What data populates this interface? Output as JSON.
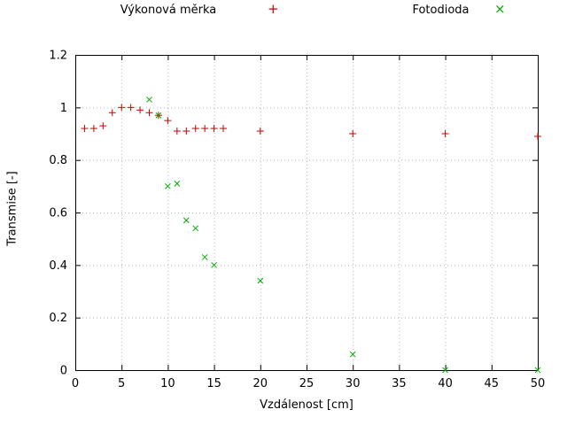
{
  "chart_data": {
    "type": "scatter",
    "title": "",
    "xlabel": "Vzdálenost [cm]",
    "ylabel": "Transmise [-]",
    "xlim": [
      0,
      50
    ],
    "ylim": [
      0,
      1.2
    ],
    "xticks": [
      0,
      5,
      10,
      15,
      20,
      25,
      30,
      35,
      40,
      45,
      50
    ],
    "yticks": [
      0,
      0.2,
      0.4,
      0.6,
      0.8,
      1,
      1.2
    ],
    "grid": true,
    "legend_position": "top",
    "series": [
      {
        "name": "Výkonová měrka",
        "marker": "plus",
        "marker_glyph": "+",
        "color": "#cc0000",
        "x": [
          1,
          2,
          3,
          4,
          5,
          6,
          7,
          8,
          9,
          10,
          11,
          12,
          13,
          14,
          15,
          16,
          20,
          30,
          40,
          50
        ],
        "y": [
          0.92,
          0.92,
          0.93,
          0.98,
          1.0,
          1.0,
          0.99,
          0.98,
          0.97,
          0.95,
          0.91,
          0.91,
          0.92,
          0.92,
          0.92,
          0.92,
          0.91,
          0.9,
          0.9,
          0.89
        ]
      },
      {
        "name": "Fotodioda",
        "marker": "cross",
        "marker_glyph": "×",
        "color": "#00aa00",
        "x": [
          8,
          9,
          10,
          11,
          12,
          13,
          14,
          15,
          20,
          30,
          40,
          50
        ],
        "y": [
          1.03,
          0.97,
          0.7,
          0.71,
          0.57,
          0.54,
          0.43,
          0.4,
          0.34,
          0.06,
          0.0,
          0.0
        ]
      }
    ],
    "style": {
      "grid_color": "#b5b5b5",
      "border_color": "#000000",
      "text_color": "#000000"
    }
  }
}
